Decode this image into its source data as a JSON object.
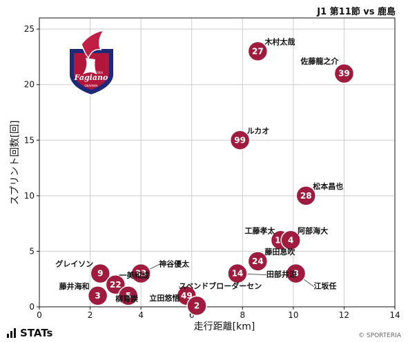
{
  "header": {
    "title": "J1 第11節 vs 鹿島"
  },
  "footer": {
    "brand": "STATs",
    "copyright": "© SPORTERIA"
  },
  "colors": {
    "bubble": "#a01c3e",
    "grid": "#cccccc",
    "axis": "#111111"
  },
  "emblem": {
    "name": "fagiano-okayama-crest",
    "text": "Fagiano",
    "sub": "OKAYAMA",
    "year": "2004"
  },
  "chart_data": {
    "type": "scatter",
    "title": "",
    "xlabel": "走行距離[km]",
    "ylabel": "スプリント回数[回]",
    "xlim": [
      0,
      14
    ],
    "ylim": [
      0,
      26
    ],
    "xticks": [
      0,
      2,
      4,
      6,
      8,
      10,
      12,
      14
    ],
    "yticks": [
      0,
      5,
      10,
      15,
      20,
      25
    ],
    "grid": true,
    "points": [
      {
        "number": "27",
        "name": "木村太哉",
        "x": 8.6,
        "y": 23
      },
      {
        "number": "39",
        "name": "佐藤龍之介",
        "x": 12.0,
        "y": 21
      },
      {
        "number": "99",
        "name": "ルカオ",
        "x": 7.9,
        "y": 15
      },
      {
        "number": "28",
        "name": "松本昌也",
        "x": 10.5,
        "y": 10
      },
      {
        "number": "15",
        "name": "工藤孝太",
        "x": 9.5,
        "y": 6
      },
      {
        "number": "4",
        "name": "阿部海大",
        "x": 9.9,
        "y": 6
      },
      {
        "number": "24",
        "name": "藤田息吹",
        "x": 8.6,
        "y": 4.1
      },
      {
        "number": "9",
        "name": "グレイソン",
        "x": 2.4,
        "y": 3.0
      },
      {
        "number": "33",
        "name": "神谷優太",
        "x": 4.0,
        "y": 3.0
      },
      {
        "number": "14",
        "name": "田部井涼",
        "x": 7.8,
        "y": 3.0
      },
      {
        "number": "8",
        "name": "江坂任",
        "x": 10.1,
        "y": 3.0
      },
      {
        "number": "22",
        "name": "一美和成",
        "x": 3.0,
        "y": 2.0
      },
      {
        "number": "3",
        "name": "藤井海和",
        "x": 2.3,
        "y": 1.0
      },
      {
        "number": "5",
        "name": "柳育崇",
        "x": 3.5,
        "y": 1.0
      },
      {
        "number": "49",
        "name": "立田悠悟",
        "x": 5.8,
        "y": 1.0
      },
      {
        "number": "2",
        "name": "スベンドブローダーセン",
        "x": 6.2,
        "y": 0.1
      }
    ]
  }
}
